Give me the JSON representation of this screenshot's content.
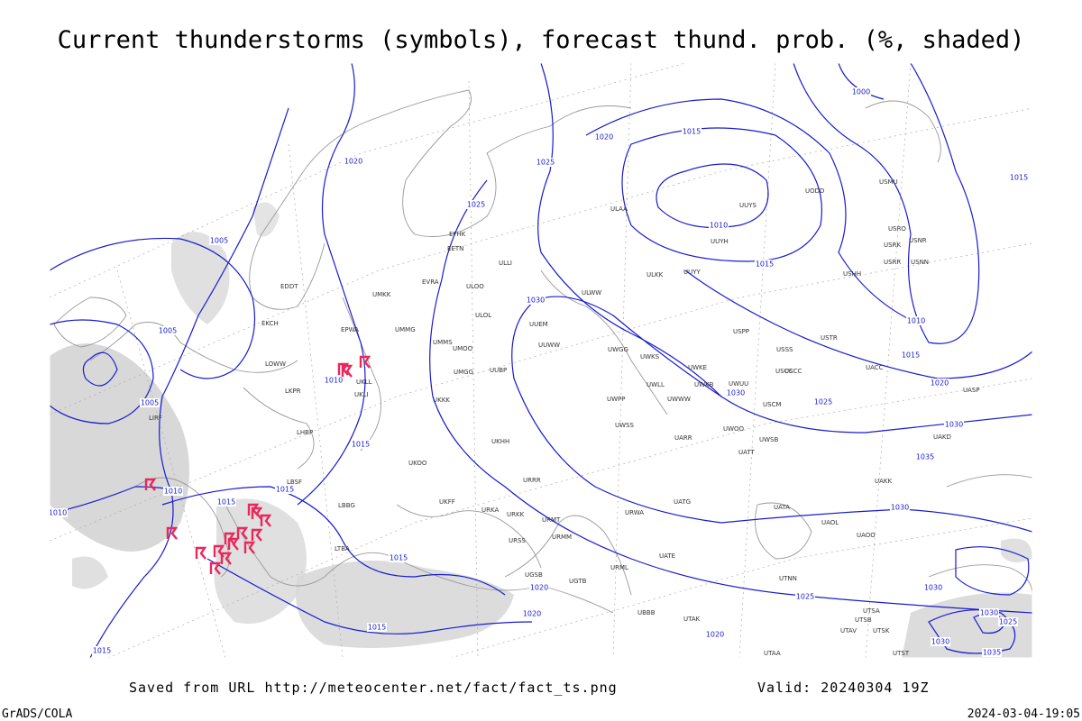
{
  "title": "Current thunderstorms (symbols), forecast thund. prob. (%, shaded)",
  "footer": {
    "source": "Saved from URL http://meteocenter.net/fact/fact_ts.png",
    "valid": "Valid: 20240304 19Z",
    "software": "GrADS/COLA",
    "timestamp": "2024-03-04-19:05"
  },
  "isobar_labels": [
    "1000",
    "1020",
    "1015",
    "1025",
    "1020",
    "1025",
    "1010",
    "1015",
    "1015",
    "1005",
    "1005",
    "1030",
    "1010",
    "1015",
    "1020",
    "1025",
    "1030",
    "1030",
    "1035",
    "1010",
    "1005",
    "1015",
    "1010",
    "1010",
    "1015",
    "1015",
    "1030",
    "1015",
    "1020",
    "1020",
    "1025",
    "1020",
    "1015",
    "1015",
    "1030",
    "1035",
    "1025",
    "1030",
    "1030"
  ],
  "stations": [
    "ULAA",
    "UUYS",
    "UUYH",
    "UUYY",
    "ULKK",
    "ULWW",
    "UUEM",
    "UUWW",
    "UWGG",
    "UWKS",
    "UWKE",
    "UWUU",
    "UWKB",
    "UWWW",
    "UWLL",
    "UWPP",
    "UWSS",
    "UWOO",
    "UARR",
    "UATT",
    "UWSB",
    "USCM",
    "USCC",
    "USSS",
    "USPP",
    "USTR",
    "USRO",
    "USRK",
    "USRR",
    "USNR",
    "USNN",
    "USHH",
    "USMU",
    "UODD",
    "ULOL",
    "ULOO",
    "EVRA",
    "EFHK",
    "EETN",
    "ULLI",
    "UMKK",
    "EPWA",
    "UMMG",
    "UMMS",
    "UMOO",
    "UMGG",
    "UUBP",
    "UKKK",
    "UKLL",
    "UKLI",
    "UKHH",
    "UKOO",
    "UKFF",
    "URRR",
    "URKA",
    "URKK",
    "URMT",
    "URMM",
    "URSS",
    "URML",
    "URWA",
    "UGSB",
    "UGTB",
    "UBBB",
    "UTAK",
    "UATE",
    "UATG",
    "UATA",
    "UAOL",
    "UAOO",
    "UAKK",
    "UTNN",
    "UTSA",
    "UTSB",
    "UTAV",
    "UTSK",
    "UTST",
    "UTAA",
    "EDDT",
    "EKCH",
    "LKPR",
    "LOWW",
    "LHBP",
    "LBSF",
    "LBBG",
    "LTBA",
    "LIRF",
    "UACC",
    "UASP",
    "UAKD",
    "USCC"
  ]
}
